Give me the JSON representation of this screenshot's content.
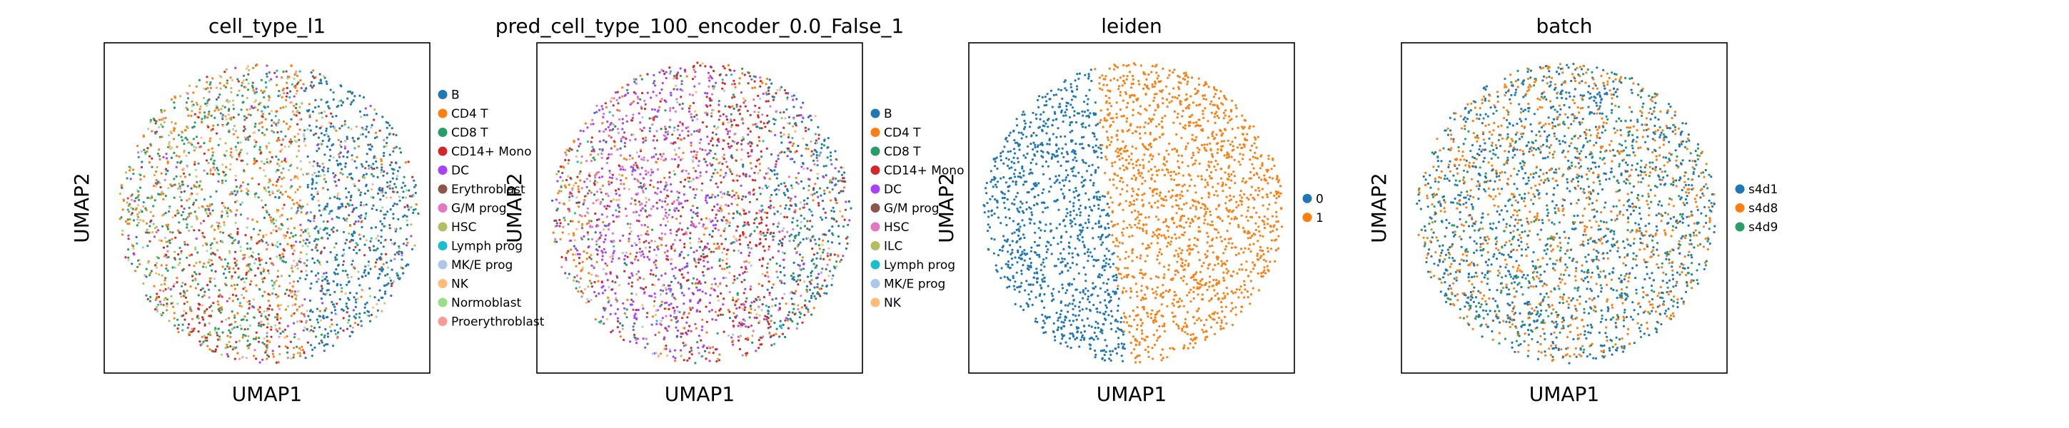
{
  "chart_data": [
    {
      "type": "scatter",
      "title": "cell_type_l1",
      "xlabel": "UMAP1",
      "ylabel": "UMAP2",
      "legend_position": "right",
      "grid": false,
      "categories": [
        {
          "name": "B",
          "color": "#1f77b4"
        },
        {
          "name": "CD4 T",
          "color": "#ff7f0e"
        },
        {
          "name": "CD8 T",
          "color": "#279e68"
        },
        {
          "name": "CD14+ Mono",
          "color": "#d62728"
        },
        {
          "name": "DC",
          "color": "#aa40fc"
        },
        {
          "name": "Erythroblast",
          "color": "#8c564b"
        },
        {
          "name": "G/M prog",
          "color": "#e377c2"
        },
        {
          "name": "HSC",
          "color": "#b5bd61"
        },
        {
          "name": "Lymph prog",
          "color": "#17becf"
        },
        {
          "name": "MK/E prog",
          "color": "#aec7e8"
        },
        {
          "name": "NK",
          "color": "#ffbb78"
        },
        {
          "name": "Normoblast",
          "color": "#98df8a"
        },
        {
          "name": "Proerythroblast",
          "color": "#ff9896"
        }
      ]
    },
    {
      "type": "scatter",
      "title": "pred_cell_type_100_encoder_0.0_False_1",
      "xlabel": "UMAP1",
      "ylabel": "UMAP2",
      "legend_position": "right",
      "grid": false,
      "categories": [
        {
          "name": "B",
          "color": "#1f77b4"
        },
        {
          "name": "CD4 T",
          "color": "#ff7f0e"
        },
        {
          "name": "CD8 T",
          "color": "#279e68"
        },
        {
          "name": "CD14+ Mono",
          "color": "#d62728"
        },
        {
          "name": "DC",
          "color": "#aa40fc"
        },
        {
          "name": "G/M prog",
          "color": "#8c564b"
        },
        {
          "name": "HSC",
          "color": "#e377c2"
        },
        {
          "name": "ILC",
          "color": "#b5bd61"
        },
        {
          "name": "Lymph prog",
          "color": "#17becf"
        },
        {
          "name": "MK/E prog",
          "color": "#aec7e8"
        },
        {
          "name": "NK",
          "color": "#ffbb78"
        }
      ]
    },
    {
      "type": "scatter",
      "title": "leiden",
      "xlabel": "UMAP1",
      "ylabel": "UMAP2",
      "legend_position": "right",
      "grid": false,
      "categories": [
        {
          "name": "0",
          "color": "#1f77b4"
        },
        {
          "name": "1",
          "color": "#ff7f0e"
        }
      ]
    },
    {
      "type": "scatter",
      "title": "batch",
      "xlabel": "UMAP1",
      "ylabel": "UMAP2",
      "legend_position": "right",
      "grid": false,
      "categories": [
        {
          "name": "s4d1",
          "color": "#1f77b4"
        },
        {
          "name": "s4d8",
          "color": "#ff7f0e"
        },
        {
          "name": "s4d9",
          "color": "#279e68"
        }
      ]
    }
  ]
}
